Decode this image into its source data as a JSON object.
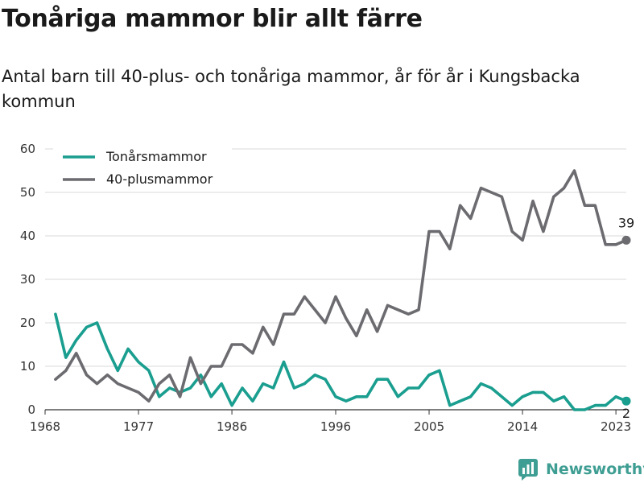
{
  "title": "Tonåriga mammor blir allt färre",
  "subtitle": "Antal barn till 40-plus- och tonåriga mammor, år för år i Kungsbacka kommun",
  "brand": "Newsworthy",
  "colors": {
    "teen": "#1a9e8f",
    "plus40": "#6b6b70",
    "grid": "#d9d9d9",
    "brand": "#3f9e93"
  },
  "chart_data": {
    "type": "line",
    "title": "Tonåriga mammor blir allt färre",
    "subtitle": "Antal barn till 40-plus- och tonåriga mammor, år för år i Kungsbacka kommun",
    "xlabel": "",
    "ylabel": "",
    "x_ticks": [
      1968,
      1977,
      1986,
      1996,
      2005,
      2014,
      2023
    ],
    "y_ticks": [
      0,
      10,
      20,
      30,
      40,
      50,
      60
    ],
    "ylim": [
      0,
      60
    ],
    "xlim": [
      1968,
      2024
    ],
    "grid": "horizontal",
    "legend_position": "top-left",
    "x": [
      1969,
      1970,
      1971,
      1972,
      1973,
      1974,
      1975,
      1976,
      1977,
      1978,
      1979,
      1980,
      1981,
      1982,
      1983,
      1984,
      1985,
      1986,
      1987,
      1988,
      1989,
      1990,
      1991,
      1992,
      1993,
      1994,
      1995,
      1996,
      1997,
      1998,
      1999,
      2000,
      2001,
      2002,
      2003,
      2004,
      2005,
      2006,
      2007,
      2008,
      2009,
      2010,
      2011,
      2012,
      2013,
      2014,
      2015,
      2016,
      2017,
      2018,
      2019,
      2020,
      2021,
      2022,
      2023,
      2024
    ],
    "series": [
      {
        "name": "Tonårsmammor",
        "color": "#1a9e8f",
        "end_label": "2",
        "values": [
          22,
          12,
          16,
          19,
          20,
          14,
          9,
          14,
          11,
          9,
          3,
          5,
          4,
          5,
          8,
          3,
          6,
          1,
          5,
          2,
          6,
          5,
          11,
          5,
          6,
          8,
          7,
          3,
          2,
          3,
          3,
          7,
          7,
          3,
          5,
          5,
          8,
          9,
          1,
          2,
          3,
          6,
          5,
          3,
          1,
          3,
          4,
          4,
          2,
          3,
          0,
          0,
          1,
          1,
          3,
          2
        ]
      },
      {
        "name": "40-plusmammor",
        "color": "#6b6b70",
        "end_label": "39",
        "values": [
          7,
          9,
          13,
          8,
          6,
          8,
          6,
          5,
          4,
          2,
          6,
          8,
          3,
          12,
          6,
          10,
          10,
          15,
          15,
          13,
          19,
          15,
          22,
          22,
          26,
          23,
          20,
          26,
          21,
          17,
          23,
          18,
          24,
          23,
          22,
          23,
          41,
          41,
          37,
          47,
          44,
          51,
          50,
          49,
          41,
          39,
          48,
          41,
          49,
          51,
          55,
          47,
          47,
          38,
          38,
          39
        ]
      }
    ]
  }
}
